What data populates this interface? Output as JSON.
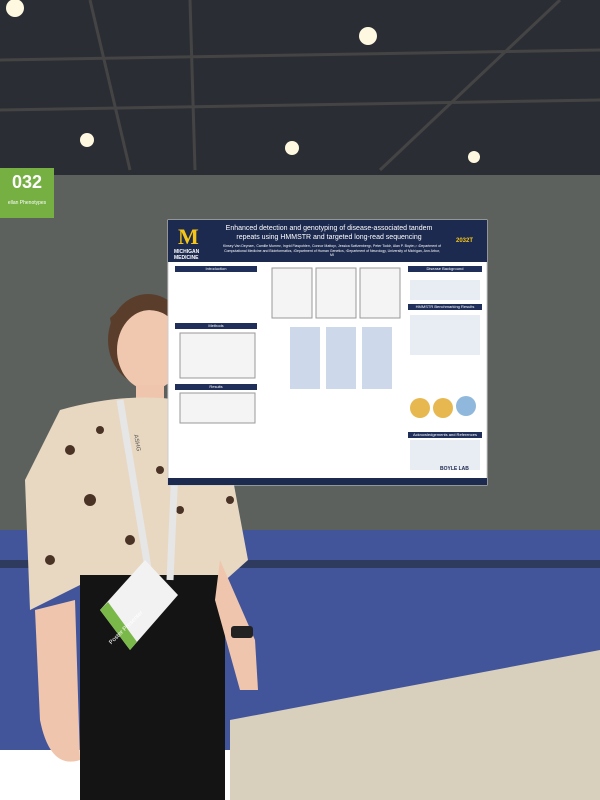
{
  "sign": {
    "number": "032",
    "label": "ellan Phenotypes"
  },
  "poster": {
    "logo_letter": "M",
    "logo_text": "MICHIGAN MEDICINE",
    "title": "Enhanced detection and genotyping of disease-associated tandem repeats using HMMSTR and targeted long-read sequencing",
    "poster_id": "2032T",
    "authors": "Kinsey Van Deynze¹, Camille Mumm², Ingrid Fiaspohler², Connor Mattoy², Jessica Switzenberg², Peter Todd³, Alan P. Boyle¹,²",
    "affiliations": "¹Department of Computational Medicine and Bioinformatics, ²Department of Human Genetics, ³Department of Neurology, University of Michigan, Ann Arbor, MI",
    "sections": [
      "Introduction",
      "Methods",
      "Results",
      "Disease Background",
      "HMMSTR Benchmarking Results",
      "Acknowledgements and References"
    ],
    "lab": "BOYLE LAB"
  },
  "badge": {
    "lanyard": "ASHG",
    "role": "Poster Presenter"
  }
}
